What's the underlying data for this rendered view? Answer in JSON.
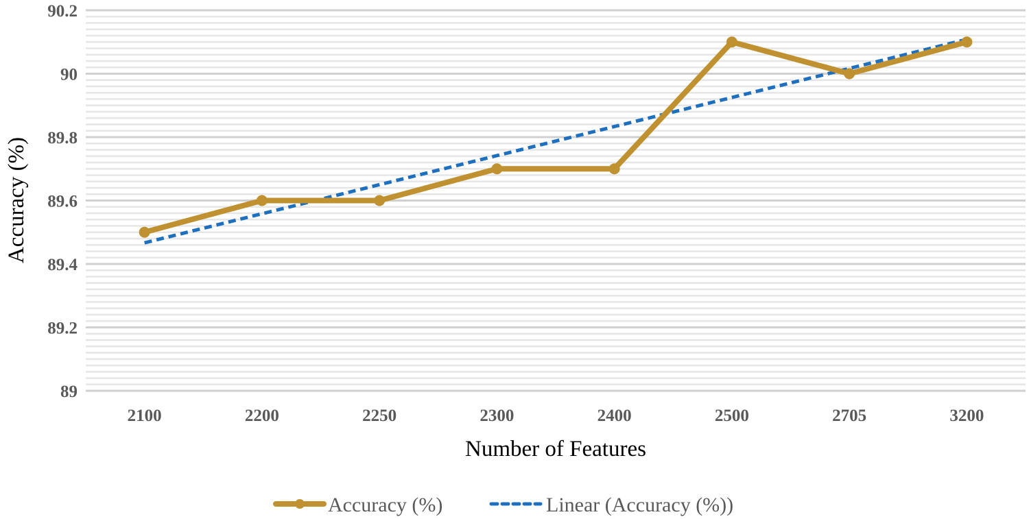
{
  "chart_data": {
    "type": "line",
    "title": "",
    "xlabel": "Number of Features",
    "ylabel": "Accuracy (%)",
    "categories": [
      "2100",
      "2200",
      "2250",
      "2300",
      "2400",
      "2500",
      "2705",
      "3200"
    ],
    "series": [
      {
        "name": "Accuracy (%)",
        "values": [
          89.5,
          89.6,
          89.6,
          89.7,
          89.7,
          90.1,
          90.0,
          90.1
        ],
        "color": "#BF9130"
      }
    ],
    "trendline": {
      "name": "Linear (Accuracy (%))",
      "type": "linear",
      "color": "#1F6FBF"
    },
    "ylim": [
      89,
      90.2
    ],
    "yticks": [
      "89",
      "89.2",
      "89.4",
      "89.6",
      "89.8",
      "90",
      "90.2"
    ],
    "grid": true,
    "legend": "bottom"
  }
}
